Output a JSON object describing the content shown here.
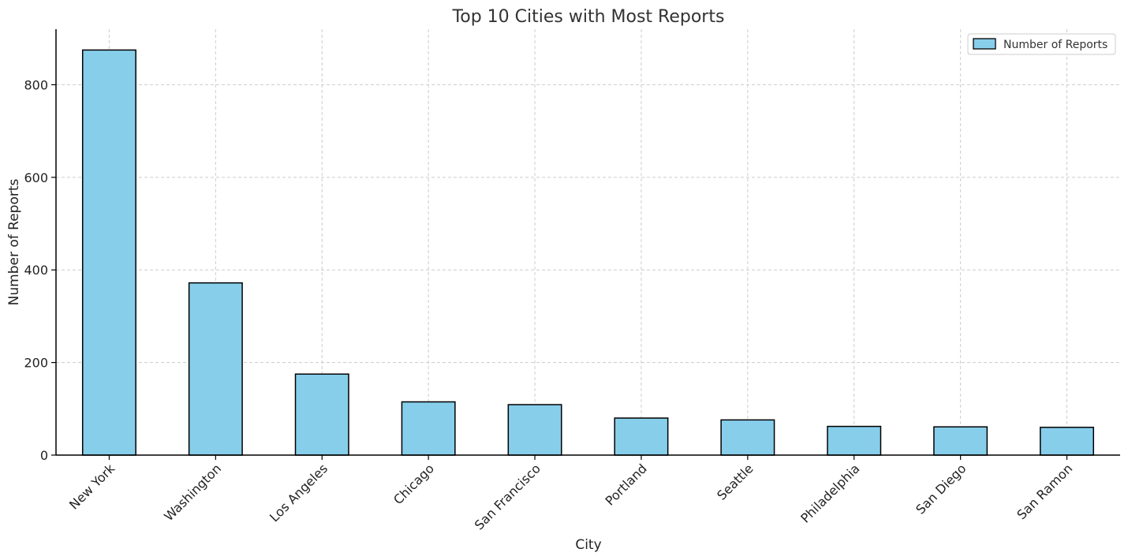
{
  "chart_data": {
    "type": "bar",
    "title": "Top 10 Cities with Most Reports",
    "xlabel": "City",
    "ylabel": "Number of Reports",
    "categories": [
      "New York",
      "Washington",
      "Los Angeles",
      "Chicago",
      "San Francisco",
      "Portland",
      "Seattle",
      "Philadelphia",
      "San Diego",
      "San Ramon"
    ],
    "series": [
      {
        "name": "Number of Reports",
        "values": [
          875,
          372,
          175,
          115,
          109,
          80,
          76,
          62,
          61,
          60
        ]
      }
    ],
    "ylim": [
      0,
      920
    ],
    "yticks": [
      0,
      200,
      400,
      600,
      800
    ],
    "grid": true,
    "legend_position": "top-right",
    "colors": {
      "bar_fill": "#87CEEB",
      "bar_edge": "#000000",
      "grid": "#cccccc",
      "axis": "#000000"
    }
  }
}
